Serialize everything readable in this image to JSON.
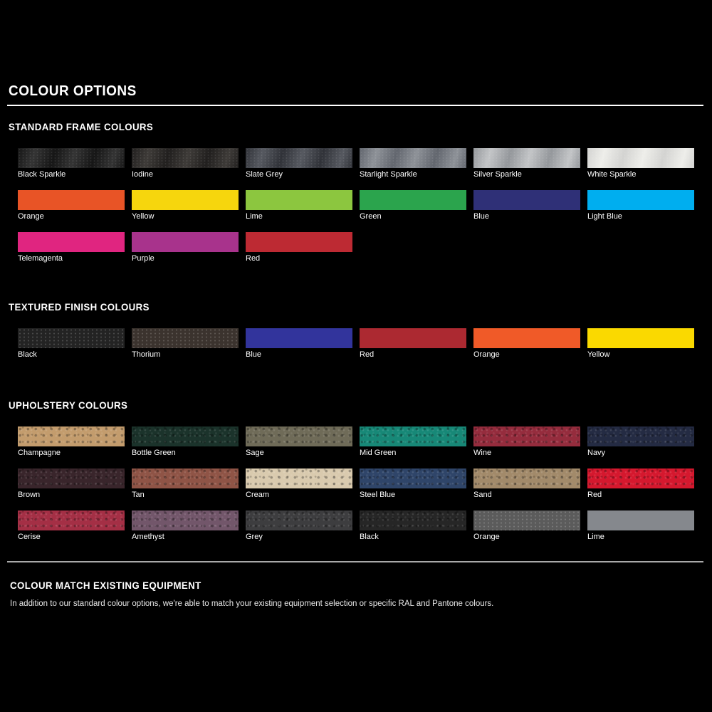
{
  "page": {
    "title": "COLOUR OPTIONS",
    "background_color": "#000000",
    "title_rule_color": "#FFFFFF",
    "separator_rule_color": "#A9A9A9"
  },
  "sections": [
    {
      "heading": "STANDARD FRAME COLOURS",
      "swatches": [
        {
          "label": "Black Sparkle",
          "color": "#161616",
          "sheen": "#343434",
          "finish": "sparkle"
        },
        {
          "label": "Iodine",
          "color": "#211F1E",
          "sheen": "#3E3B38",
          "finish": "sparkle"
        },
        {
          "label": "Slate Grey",
          "color": "#303238",
          "sheen": "#565960",
          "finish": "sparkle"
        },
        {
          "label": "Starlight Sparkle",
          "color": "#62666E",
          "sheen": "#8E9298",
          "finish": "sparkle"
        },
        {
          "label": "Silver Sparkle",
          "color": "#94979B",
          "sheen": "#C3C5C7",
          "finish": "sparkle"
        },
        {
          "label": "White Sparkle",
          "color": "#D3D3D1",
          "sheen": "#EEEEEA",
          "finish": "sparkle"
        },
        {
          "label": "Orange",
          "color": "#E85426",
          "finish": "flat"
        },
        {
          "label": "Yellow",
          "color": "#F6D60D",
          "finish": "flat"
        },
        {
          "label": "Lime",
          "color": "#8CC63F",
          "finish": "flat"
        },
        {
          "label": "Green",
          "color": "#2BA44D",
          "finish": "flat"
        },
        {
          "label": "Blue",
          "color": "#2F3077",
          "finish": "flat"
        },
        {
          "label": "Light Blue",
          "color": "#00AEEF",
          "finish": "flat"
        },
        {
          "label": "Telemagenta",
          "color": "#E02580",
          "finish": "flat"
        },
        {
          "label": "Purple",
          "color": "#A8338C",
          "finish": "flat"
        },
        {
          "label": "Red",
          "color": "#BD2A33",
          "finish": "flat"
        }
      ]
    },
    {
      "heading": "TEXTURED FINISH COLOURS",
      "swatches": [
        {
          "label": "Black",
          "color": "#232323",
          "finish": "dotted"
        },
        {
          "label": "Thorium",
          "color": "#3B332E",
          "finish": "dotted"
        },
        {
          "label": "Blue",
          "color": "#32349C",
          "finish": "flat"
        },
        {
          "label": "Red",
          "color": "#AC2931",
          "finish": "flat"
        },
        {
          "label": "Orange",
          "color": "#F05A28",
          "finish": "flat"
        },
        {
          "label": "Yellow",
          "color": "#FAD900",
          "finish": "flat"
        }
      ]
    },
    {
      "heading": "UPHOLSTERY COLOURS",
      "swatches": [
        {
          "label": "Champagne",
          "color": "#C39C6D",
          "finish": "leather"
        },
        {
          "label": "Bottle Green",
          "color": "#1B332B",
          "finish": "leather"
        },
        {
          "label": "Sage",
          "color": "#6F6B58",
          "finish": "leather"
        },
        {
          "label": "Mid Green",
          "color": "#178877",
          "finish": "leather"
        },
        {
          "label": "Wine",
          "color": "#952C3D",
          "finish": "leather"
        },
        {
          "label": "Navy",
          "color": "#242B43",
          "finish": "leather"
        },
        {
          "label": "Brown",
          "color": "#39252B",
          "finish": "leather"
        },
        {
          "label": "Tan",
          "color": "#8F5446",
          "finish": "leather"
        },
        {
          "label": "Cream",
          "color": "#D9CAAE",
          "finish": "leather"
        },
        {
          "label": "Steel Blue",
          "color": "#2F4569",
          "finish": "leather"
        },
        {
          "label": "Sand",
          "color": "#A28A6A",
          "finish": "leather"
        },
        {
          "label": "Red",
          "color": "#D5182E",
          "finish": "leather"
        },
        {
          "label": "Cerise",
          "color": "#A42F45",
          "finish": "leather"
        },
        {
          "label": "Amethyst",
          "color": "#72566A",
          "finish": "leather"
        },
        {
          "label": "Grey",
          "color": "#3D3D3F",
          "finish": "leather"
        },
        {
          "label": "Black",
          "color": "#262626",
          "finish": "leather"
        },
        {
          "label": "Orange",
          "color": "#5B5B5B",
          "finish": "dotted"
        },
        {
          "label": "Lime",
          "color": "#85888D",
          "finish": "flat"
        }
      ]
    }
  ],
  "colour_match": {
    "heading": "COLOUR MATCH EXISTING EQUIPMENT",
    "body": "In addition to our standard colour options, we're able to match your existing equipment selection or specific RAL and Pantone colours."
  }
}
